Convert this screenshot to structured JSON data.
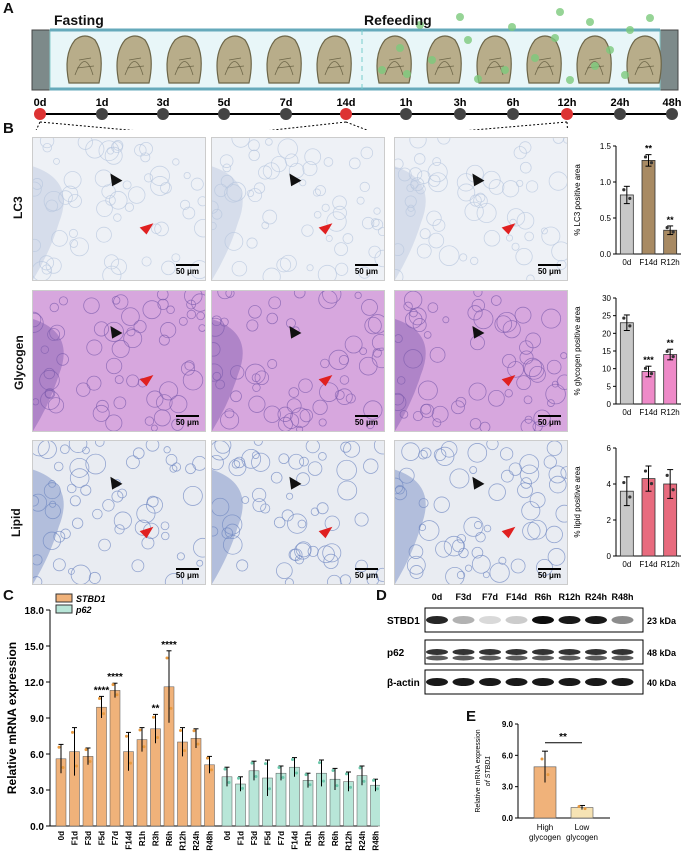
{
  "panels": {
    "a": "A",
    "b": "B",
    "c": "C",
    "d": "D",
    "e": "E"
  },
  "timeline": {
    "fasting_label": "Fasting",
    "refeeding_label": "Refeeding",
    "ticks": [
      "0d",
      "1d",
      "3d",
      "5d",
      "7d",
      "14d",
      "1h",
      "3h",
      "6h",
      "12h",
      "24h",
      "48h"
    ],
    "highlighted": [
      "0d",
      "14d",
      "12h"
    ]
  },
  "histology": {
    "rows": [
      "LC3",
      "Glycogen",
      "Lipid"
    ],
    "scale": "50 μm"
  },
  "colors": {
    "stbd1": "#f0b27a",
    "p62": "#b8e6d8",
    "c0d": "#c8c8c8",
    "lc3": "#a88a63",
    "glycogen": "#ee8ac8",
    "lipid": "#e86b7e",
    "red_dot": "#e02020"
  },
  "chart_data": [
    {
      "id": "lc3",
      "type": "bar",
      "ylabel": "% LC3 positive area",
      "categories": [
        "0d",
        "F14d",
        "R12h"
      ],
      "values": [
        0.82,
        1.3,
        0.33
      ],
      "errors": [
        0.12,
        0.08,
        0.06
      ],
      "ylim": [
        0,
        1.5
      ],
      "yticks": [
        "0.0",
        "0.5",
        "1.0",
        "1.5"
      ],
      "annotations": [
        "",
        "**",
        "**"
      ]
    },
    {
      "id": "glycogen",
      "type": "bar",
      "ylabel": "% glycogen positive area",
      "categories": [
        "0d",
        "F14d",
        "R12h"
      ],
      "values": [
        23,
        9.2,
        14
      ],
      "errors": [
        2.2,
        1.5,
        1.5
      ],
      "ylim": [
        0,
        30
      ],
      "yticks": [
        "0",
        "5",
        "10",
        "15",
        "20",
        "25",
        "30"
      ],
      "annotations": [
        "",
        "***",
        "**"
      ]
    },
    {
      "id": "lipid",
      "type": "bar",
      "ylabel": "% lipid positive area",
      "categories": [
        "0d",
        "F14d",
        "R12h"
      ],
      "values": [
        3.6,
        4.3,
        4.0
      ],
      "errors": [
        0.8,
        0.7,
        0.8
      ],
      "ylim": [
        0,
        6
      ],
      "yticks": [
        "0",
        "2",
        "4",
        "6"
      ],
      "annotations": [
        "",
        "",
        ""
      ]
    },
    {
      "id": "mrna",
      "type": "bar",
      "ylabel": "Relative mRNA expression",
      "yticks": [
        "0.0",
        "3.0",
        "6.0",
        "9.0",
        "12.0",
        "15.0",
        "18.0"
      ],
      "ylim": [
        0,
        18
      ],
      "categories": [
        "0d",
        "F1d",
        "F3d",
        "F5d",
        "F7d",
        "F14d",
        "R1h",
        "R3h",
        "R6h",
        "R12h",
        "R24h",
        "R48h"
      ],
      "series": [
        {
          "name": "STBD1",
          "values": [
            5.6,
            6.2,
            5.8,
            9.9,
            11.3,
            6.2,
            7.2,
            8.1,
            11.6,
            7.0,
            7.3,
            5.1
          ],
          "errors": [
            1.2,
            2.0,
            0.7,
            0.9,
            0.6,
            1.6,
            1.0,
            1.2,
            3.0,
            1.2,
            0.8,
            0.7
          ],
          "annotations": [
            "",
            "",
            "",
            "****",
            "****",
            "",
            "",
            "**",
            "****",
            "",
            "",
            ""
          ]
        },
        {
          "name": "p62",
          "values": [
            4.1,
            3.5,
            4.6,
            4.0,
            4.4,
            4.9,
            3.8,
            4.4,
            3.9,
            3.7,
            4.2,
            3.4
          ],
          "errors": [
            0.8,
            0.6,
            0.8,
            1.5,
            0.6,
            0.8,
            0.6,
            1.1,
            0.9,
            0.8,
            0.8,
            0.5
          ],
          "annotations": [
            "",
            "",
            "",
            "",
            "",
            "",
            "",
            "",
            "",
            "",
            "",
            ""
          ]
        }
      ]
    },
    {
      "id": "stbd1_glycogen",
      "type": "bar",
      "ylabel": "Relative mRNA expression of STBD1",
      "categories": [
        "High glycogen",
        "Low glycogen"
      ],
      "values": [
        4.9,
        1.0
      ],
      "errors": [
        1.5,
        0.2
      ],
      "ylim": [
        0,
        9
      ],
      "yticks": [
        "0.0",
        "3.0",
        "6.0",
        "9.0"
      ],
      "annotation": "**"
    }
  ],
  "western": {
    "lanes": [
      "0d",
      "F3d",
      "F7d",
      "F14d",
      "R6h",
      "R12h",
      "R24h",
      "R48h"
    ],
    "rows": [
      {
        "label": "STBD1",
        "kda": "23 kDa",
        "intensity": [
          0.85,
          0.3,
          0.15,
          0.2,
          0.95,
          0.9,
          0.9,
          0.45
        ]
      },
      {
        "label": "p62",
        "kda": "48 kDa",
        "intensity": [
          0.8,
          0.8,
          0.8,
          0.8,
          0.8,
          0.8,
          0.8,
          0.8
        ]
      },
      {
        "label": "β-actin",
        "kda": "40 kDa",
        "intensity": [
          0.9,
          0.9,
          0.9,
          0.9,
          0.9,
          0.9,
          0.9,
          0.9
        ]
      }
    ]
  },
  "panelE": {
    "cat1a": "High",
    "cat1b": "glycogen",
    "cat2a": "Low",
    "cat2b": "glycogen",
    "ylab1": "Relative mRNA expression",
    "ylab2": "of STBD1"
  }
}
